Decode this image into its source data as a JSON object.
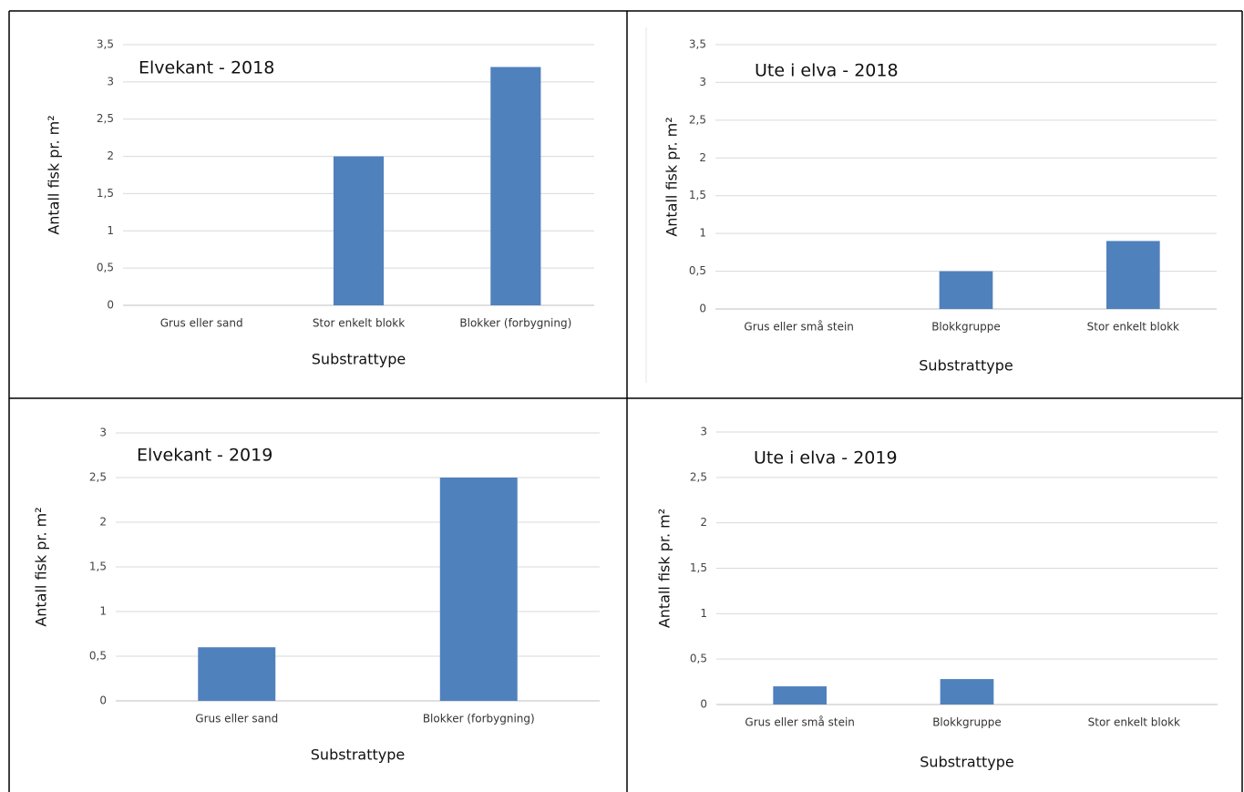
{
  "chart_data": [
    {
      "type": "bar",
      "title": "Elvekant - 2018",
      "x_label": "Substrattype",
      "y_label": "Antall fisk pr. m²",
      "categories": [
        "Grus eller sand",
        "Stor enkelt blokk",
        "Blokker (forbygning)"
      ],
      "values": [
        0,
        2,
        3.2
      ],
      "color": "#4f81bd",
      "ylim": [
        0,
        3.5
      ],
      "yticks": [
        0,
        {
          "value": 0.5,
          "label": "0,5"
        },
        1,
        {
          "value": 1.5,
          "label": "1,5"
        },
        2,
        {
          "value": 2.5,
          "label": "2,5"
        },
        3,
        {
          "value": 3.5,
          "label": "3,5"
        }
      ],
      "grid": true
    },
    {
      "type": "bar",
      "title": "Ute i elva - 2018",
      "x_label": "Substrattype",
      "y_label": "Antall fisk pr. m²",
      "categories": [
        "Grus eller små stein",
        "Blokkgruppe",
        "Stor enkelt blokk"
      ],
      "values": [
        0,
        0.5,
        0.9
      ],
      "color": "#4f81bd",
      "ylim": [
        0,
        3.5
      ],
      "yticks": [
        0,
        {
          "value": 0.5,
          "label": "0,5"
        },
        1,
        {
          "value": 1.5,
          "label": "1,5"
        },
        2,
        {
          "value": 2.5,
          "label": "2,5"
        },
        3,
        {
          "value": 3.5,
          "label": "3,5"
        }
      ],
      "grid": true
    },
    {
      "type": "bar",
      "title": "Elvekant - 2019",
      "x_label": "Substrattype",
      "y_label": "Antall fisk pr. m²",
      "categories": [
        "Grus eller sand",
        "Blokker (forbygning)"
      ],
      "values": [
        0.6,
        2.5
      ],
      "color": "#4f81bd",
      "ylim": [
        0,
        3
      ],
      "yticks": [
        0,
        {
          "value": 0.5,
          "label": "0,5"
        },
        1,
        {
          "value": 1.5,
          "label": "1,5"
        },
        2,
        {
          "value": 2.5,
          "label": "2,5"
        },
        3
      ],
      "grid": true
    },
    {
      "type": "bar",
      "title": "Ute i elva - 2019",
      "x_label": "Substrattype",
      "y_label": "Antall fisk pr. m²",
      "categories": [
        "Grus eller små stein",
        "Blokkgruppe",
        "Stor enkelt blokk"
      ],
      "values": [
        0.2,
        0.28,
        0
      ],
      "color": "#4f81bd",
      "ylim": [
        0,
        3
      ],
      "yticks": [
        0,
        {
          "value": 0.5,
          "label": "0,5"
        },
        1,
        {
          "value": 1.5,
          "label": "1,5"
        },
        2,
        {
          "value": 2.5,
          "label": "2,5"
        },
        3
      ],
      "grid": true
    }
  ]
}
